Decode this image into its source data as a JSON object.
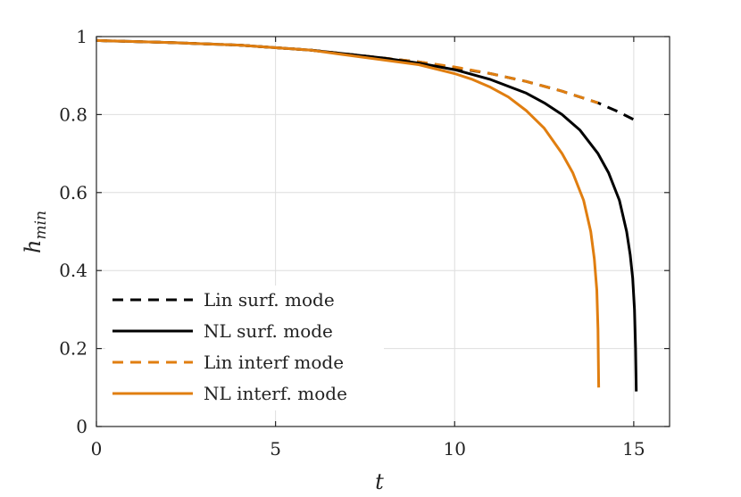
{
  "chart_data": {
    "type": "line",
    "title": "",
    "xlabel": "t",
    "ylabel": {
      "base": "h",
      "subscript": "min"
    },
    "xlim": [
      0,
      16
    ],
    "ylim": [
      0,
      1
    ],
    "xticks": [
      0,
      5,
      10,
      15
    ],
    "yticks": [
      0,
      0.2,
      0.4,
      0.6,
      0.8,
      1
    ],
    "xtick_labels": [
      "0",
      "5",
      "10",
      "15"
    ],
    "ytick_labels": [
      "0",
      "0.2",
      "0.4",
      "0.6",
      "0.8",
      "1"
    ],
    "grid": true,
    "legend_position": "bottom-left",
    "series": [
      {
        "name": "Lin surf. mode",
        "color": "#000000",
        "dash": "dashed",
        "x": [
          0,
          2,
          4,
          6,
          8,
          9,
          10,
          11,
          12,
          13,
          14,
          14.5,
          15.05
        ],
        "y": [
          0.99,
          0.985,
          0.978,
          0.965,
          0.945,
          0.935,
          0.92,
          0.905,
          0.885,
          0.86,
          0.83,
          0.81,
          0.785
        ]
      },
      {
        "name": "NL surf. mode",
        "color": "#000000",
        "dash": "solid",
        "x": [
          0,
          2,
          4,
          6,
          8,
          9,
          10,
          11,
          12,
          12.5,
          13,
          13.5,
          14,
          14.3,
          14.6,
          14.8,
          14.9,
          14.97,
          15.02,
          15.05,
          15.07
        ],
        "y": [
          0.99,
          0.985,
          0.978,
          0.965,
          0.945,
          0.932,
          0.915,
          0.89,
          0.855,
          0.83,
          0.8,
          0.76,
          0.7,
          0.65,
          0.58,
          0.5,
          0.44,
          0.38,
          0.3,
          0.2,
          0.09
        ]
      },
      {
        "name": "Lin interf mode",
        "color": "#E07E10",
        "dash": "dashed",
        "x": [
          0,
          2,
          4,
          6,
          8,
          9,
          10,
          11,
          12,
          13,
          14
        ],
        "y": [
          0.99,
          0.985,
          0.978,
          0.965,
          0.945,
          0.935,
          0.922,
          0.905,
          0.885,
          0.86,
          0.83
        ]
      },
      {
        "name": "NL interf. mode",
        "color": "#E07E10",
        "dash": "solid",
        "x": [
          0,
          2,
          4,
          6,
          8,
          9,
          10,
          10.5,
          11,
          11.5,
          12,
          12.5,
          13,
          13.3,
          13.6,
          13.8,
          13.9,
          13.97,
          14.0,
          14.02
        ],
        "y": [
          0.99,
          0.985,
          0.978,
          0.965,
          0.94,
          0.928,
          0.905,
          0.89,
          0.87,
          0.845,
          0.81,
          0.765,
          0.7,
          0.65,
          0.58,
          0.5,
          0.43,
          0.35,
          0.25,
          0.1
        ]
      }
    ]
  }
}
